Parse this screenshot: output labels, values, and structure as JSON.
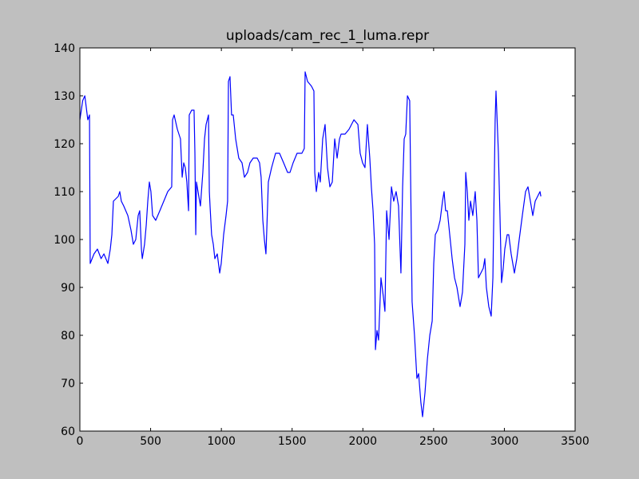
{
  "chart_data": {
    "type": "line",
    "title": "uploads/cam_rec_1_luma.repr",
    "x": [
      0,
      20,
      35,
      56,
      68,
      73,
      100,
      124,
      150,
      170,
      198,
      215,
      226,
      237,
      271,
      282,
      293,
      310,
      339,
      361,
      378,
      395,
      412,
      423,
      435,
      441,
      457,
      469,
      480,
      491,
      502,
      514,
      536,
      565,
      593,
      621,
      649,
      655,
      666,
      689,
      711,
      723,
      734,
      745,
      756,
      768,
      773,
      790,
      807,
      813,
      819,
      824,
      835,
      852,
      869,
      881,
      892,
      909,
      915,
      920,
      931,
      943,
      954,
      971,
      988,
      999,
      1016,
      1033,
      1044,
      1050,
      1061,
      1072,
      1084,
      1101,
      1123,
      1146,
      1163,
      1185,
      1202,
      1225,
      1253,
      1270,
      1281,
      1293,
      1304,
      1315,
      1321,
      1332,
      1355,
      1383,
      1411,
      1440,
      1468,
      1485,
      1507,
      1535,
      1569,
      1586,
      1592,
      1609,
      1637,
      1654,
      1660,
      1671,
      1688,
      1699,
      1716,
      1733,
      1750,
      1767,
      1784,
      1801,
      1818,
      1835,
      1846,
      1874,
      1902,
      1937,
      1965,
      1981,
      1998,
      2015,
      2032,
      2049,
      2060,
      2072,
      2083,
      2089,
      2100,
      2111,
      2128,
      2145,
      2156,
      2168,
      2185,
      2202,
      2218,
      2235,
      2252,
      2269,
      2281,
      2292,
      2303,
      2315,
      2331,
      2348,
      2365,
      2382,
      2394,
      2410,
      2422,
      2439,
      2456,
      2473,
      2490,
      2501,
      2512,
      2529,
      2546,
      2563,
      2574,
      2585,
      2597,
      2614,
      2631,
      2648,
      2665,
      2687,
      2704,
      2721,
      2727,
      2738,
      2749,
      2761,
      2777,
      2794,
      2806,
      2817,
      2834,
      2851,
      2862,
      2873,
      2890,
      2907,
      2919,
      2935,
      2941,
      2958,
      2969,
      2980,
      2992,
      3003,
      3020,
      3031,
      3048,
      3071,
      3088,
      3105,
      3127,
      3150,
      3167,
      3184,
      3201,
      3218,
      3235,
      3252,
      3258
    ],
    "values": [
      125,
      129,
      130,
      125,
      126,
      95,
      97,
      98,
      96,
      97,
      95,
      98,
      101,
      108,
      109,
      110,
      108,
      107,
      105,
      102,
      99,
      100,
      105,
      106,
      98,
      96,
      99,
      103,
      108,
      112,
      110,
      105,
      104,
      106,
      108,
      110,
      111,
      125,
      126,
      123,
      121,
      113,
      116,
      115,
      112,
      106,
      126,
      127,
      127,
      118,
      101,
      112,
      110,
      107,
      114,
      121,
      124,
      126,
      110,
      107,
      101,
      99,
      96,
      97,
      93,
      95,
      101,
      105,
      108,
      133,
      134,
      126,
      126,
      121,
      117,
      116,
      113,
      114,
      116,
      117,
      117,
      116,
      113,
      104,
      100,
      97,
      102,
      112,
      115,
      118,
      118,
      116,
      114,
      114,
      116,
      118,
      118,
      119,
      135,
      133,
      132,
      131,
      114,
      110,
      114,
      112,
      121,
      124,
      115,
      111,
      112,
      121,
      117,
      121,
      122,
      122,
      123,
      125,
      124,
      118,
      116,
      115,
      124,
      117,
      111,
      106,
      99,
      77,
      81,
      79,
      92,
      88,
      85,
      106,
      100,
      111,
      108,
      110,
      107,
      93,
      111,
      121,
      122,
      130,
      129,
      87,
      80,
      71,
      72,
      66,
      63,
      68,
      75,
      80,
      83,
      95,
      101,
      102,
      104,
      108,
      110,
      106,
      106,
      101,
      96,
      92,
      90,
      86,
      89,
      99,
      114,
      110,
      104,
      108,
      105,
      110,
      104,
      92,
      93,
      94,
      96,
      90,
      86,
      84,
      92,
      125,
      131,
      118,
      105,
      91,
      94,
      98,
      101,
      101,
      97,
      93,
      96,
      100,
      105,
      110,
      111,
      108,
      105,
      108,
      109,
      110,
      109
    ],
    "color": "#0000ff",
    "xlim": [
      0,
      3500
    ],
    "xticks": [
      0,
      500,
      1000,
      1500,
      2000,
      2500,
      3000,
      3500
    ],
    "ylim": [
      60,
      140
    ],
    "yticks": [
      60,
      70,
      80,
      90,
      100,
      110,
      120,
      130,
      140
    ]
  }
}
